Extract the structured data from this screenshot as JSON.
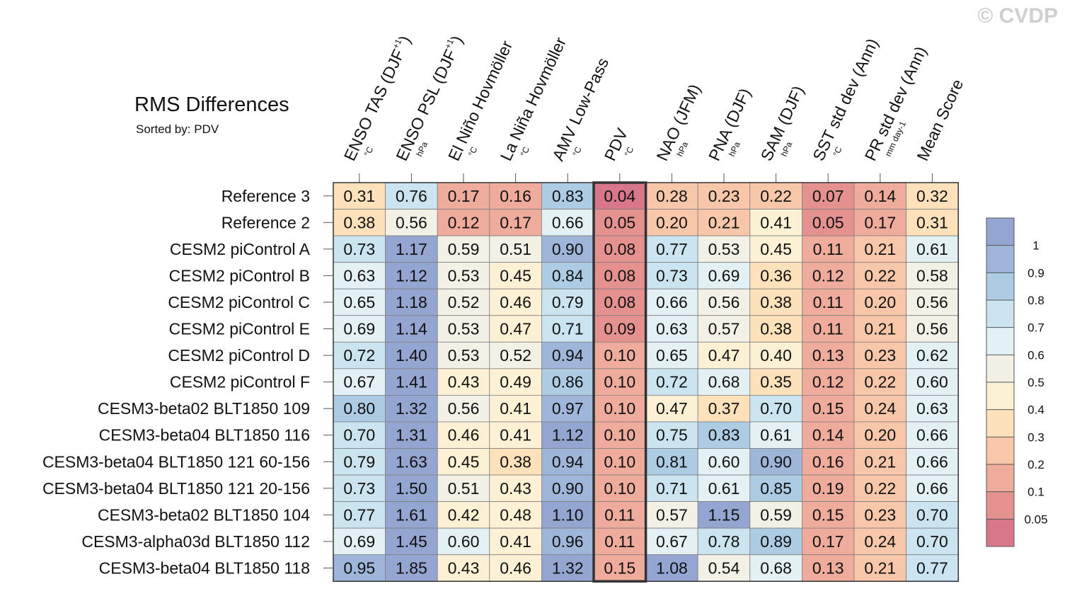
{
  "watermark": "© CVDP",
  "chart_data": {
    "type": "heatmap",
    "title": "RMS Differences",
    "subtitle": "Sorted by: PDV",
    "highlight_column": "PDV",
    "columns": [
      {
        "name": "ENSO TAS (DJF+1)",
        "base": "ENSO TAS (DJF",
        "sup": "+1",
        "tail": ")",
        "unit": "°C"
      },
      {
        "name": "ENSO PSL (DJF+1)",
        "base": "ENSO PSL (DJF",
        "sup": "+1",
        "tail": ")",
        "unit": "hPa"
      },
      {
        "name": "El Niño Hovmöller",
        "base": "El Niño Hovmöller",
        "sup": "",
        "tail": "",
        "unit": "°C"
      },
      {
        "name": "La Niña Hovmöller",
        "base": "La Niña Hovmöller",
        "sup": "",
        "tail": "",
        "unit": "°C"
      },
      {
        "name": "AMV Low-Pass",
        "base": "AMV Low-Pass",
        "sup": "",
        "tail": "",
        "unit": "°C"
      },
      {
        "name": "PDV",
        "base": "PDV",
        "sup": "",
        "tail": "",
        "unit": "°C"
      },
      {
        "name": "NAO (JFM)",
        "base": "NAO (JFM)",
        "sup": "",
        "tail": "",
        "unit": "hPa"
      },
      {
        "name": "PNA (DJF)",
        "base": "PNA (DJF)",
        "sup": "",
        "tail": "",
        "unit": "hPa"
      },
      {
        "name": "SAM (DJF)",
        "base": "SAM (DJF)",
        "sup": "",
        "tail": "",
        "unit": "hPa"
      },
      {
        "name": "SST std dev (Ann)",
        "base": "SST std dev (Ann)",
        "sup": "",
        "tail": "",
        "unit": "°C"
      },
      {
        "name": "PR std dev (Ann)",
        "base": "PR std dev (Ann)",
        "sup": "",
        "tail": "",
        "unit": "mm day-1"
      },
      {
        "name": "Mean Score",
        "base": "Mean Score",
        "sup": "",
        "tail": "",
        "unit": ""
      }
    ],
    "rows": [
      {
        "label": "Reference 3",
        "values": [
          "0.31",
          "0.76",
          "0.17",
          "0.16",
          "0.83",
          "0.04",
          "0.28",
          "0.23",
          "0.22",
          "0.07",
          "0.14",
          "0.32"
        ]
      },
      {
        "label": "Reference 2",
        "values": [
          "0.38",
          "0.56",
          "0.12",
          "0.17",
          "0.66",
          "0.05",
          "0.20",
          "0.21",
          "0.41",
          "0.05",
          "0.17",
          "0.31"
        ]
      },
      {
        "label": "CESM2 piControl A",
        "values": [
          "0.73",
          "1.17",
          "0.59",
          "0.51",
          "0.90",
          "0.08",
          "0.77",
          "0.53",
          "0.45",
          "0.11",
          "0.21",
          "0.61"
        ]
      },
      {
        "label": "CESM2 piControl B",
        "values": [
          "0.63",
          "1.12",
          "0.53",
          "0.45",
          "0.84",
          "0.08",
          "0.73",
          "0.69",
          "0.36",
          "0.12",
          "0.22",
          "0.58"
        ]
      },
      {
        "label": "CESM2 piControl C",
        "values": [
          "0.65",
          "1.18",
          "0.52",
          "0.46",
          "0.79",
          "0.08",
          "0.66",
          "0.56",
          "0.38",
          "0.11",
          "0.20",
          "0.56"
        ]
      },
      {
        "label": "CESM2 piControl E",
        "values": [
          "0.69",
          "1.14",
          "0.53",
          "0.47",
          "0.71",
          "0.09",
          "0.63",
          "0.57",
          "0.38",
          "0.11",
          "0.21",
          "0.56"
        ]
      },
      {
        "label": "CESM2 piControl D",
        "values": [
          "0.72",
          "1.40",
          "0.53",
          "0.52",
          "0.94",
          "0.10",
          "0.65",
          "0.47",
          "0.40",
          "0.13",
          "0.23",
          "0.62"
        ]
      },
      {
        "label": "CESM2 piControl F",
        "values": [
          "0.67",
          "1.41",
          "0.43",
          "0.49",
          "0.86",
          "0.10",
          "0.72",
          "0.68",
          "0.35",
          "0.12",
          "0.22",
          "0.60"
        ]
      },
      {
        "label": "CESM3-beta02 BLT1850 109",
        "values": [
          "0.80",
          "1.32",
          "0.56",
          "0.41",
          "0.97",
          "0.10",
          "0.47",
          "0.37",
          "0.70",
          "0.15",
          "0.24",
          "0.63"
        ]
      },
      {
        "label": "CESM3-beta04 BLT1850 116",
        "values": [
          "0.70",
          "1.31",
          "0.46",
          "0.41",
          "1.12",
          "0.10",
          "0.75",
          "0.83",
          "0.61",
          "0.14",
          "0.20",
          "0.66"
        ]
      },
      {
        "label": "CESM3-beta04 BLT1850 121 60-156",
        "values": [
          "0.79",
          "1.63",
          "0.45",
          "0.38",
          "0.94",
          "0.10",
          "0.81",
          "0.60",
          "0.90",
          "0.16",
          "0.21",
          "0.66"
        ]
      },
      {
        "label": "CESM3-beta04 BLT1850 121 20-156",
        "values": [
          "0.73",
          "1.50",
          "0.51",
          "0.43",
          "0.90",
          "0.10",
          "0.71",
          "0.61",
          "0.85",
          "0.19",
          "0.22",
          "0.66"
        ]
      },
      {
        "label": "CESM3-beta02 BLT1850 104",
        "values": [
          "0.77",
          "1.61",
          "0.42",
          "0.48",
          "1.10",
          "0.11",
          "0.57",
          "1.15",
          "0.59",
          "0.15",
          "0.23",
          "0.70"
        ]
      },
      {
        "label": "CESM3-alpha03d BLT1850 112",
        "values": [
          "0.69",
          "1.45",
          "0.60",
          "0.41",
          "0.96",
          "0.11",
          "0.67",
          "0.78",
          "0.89",
          "0.17",
          "0.24",
          "0.70"
        ]
      },
      {
        "label": "CESM3-beta04 BLT1850 118",
        "values": [
          "0.95",
          "1.85",
          "0.43",
          "0.46",
          "1.32",
          "0.15",
          "1.08",
          "0.54",
          "0.68",
          "0.13",
          "0.21",
          "0.77"
        ]
      }
    ],
    "colorbar": {
      "levels": [
        "0.05",
        "0.1",
        "0.2",
        "0.3",
        "0.4",
        "0.5",
        "0.6",
        "0.7",
        "0.8",
        "0.9",
        "1"
      ],
      "level_values": [
        0.05,
        0.1,
        0.2,
        0.3,
        0.4,
        0.5,
        0.6,
        0.7,
        0.8,
        0.9,
        1.0
      ],
      "colors_low_to_high": [
        "#d77789",
        "#e4918f",
        "#efac9d",
        "#f8c7a9",
        "#fde1ba",
        "#fdf1d5",
        "#f3f1e6",
        "#e3f0f4",
        "#cbe4ef",
        "#adcbe2",
        "#9fb5d9",
        "#95a5d2"
      ]
    }
  }
}
